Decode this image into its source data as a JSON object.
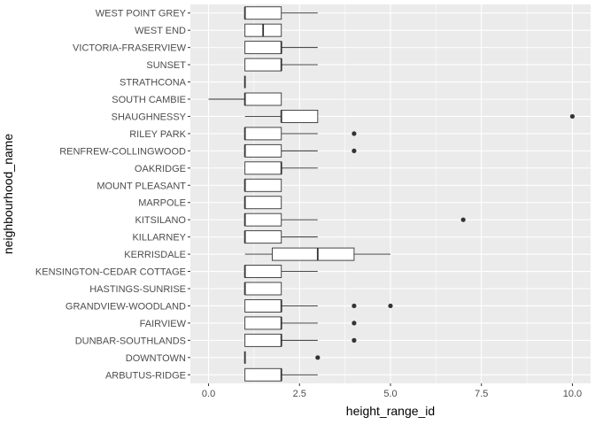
{
  "chart_data": {
    "type": "boxplot",
    "orientation": "horizontal",
    "xlabel": "height_range_id",
    "ylabel": "neighbourhood_name",
    "xlim": [
      -0.5,
      10.5
    ],
    "x_ticks": [
      0.0,
      2.5,
      5.0,
      7.5,
      10.0
    ],
    "x_tick_labels": [
      "0.0",
      "2.5",
      "5.0",
      "7.5",
      "10.0"
    ],
    "grid": true,
    "theme": {
      "panel_bg": "#EBEBEB",
      "grid_major": "#FFFFFF",
      "box_fill": "#FFFFFF",
      "box_stroke": "#333333",
      "outlier_color": "#333333"
    },
    "categories": [
      "ARBUTUS-RIDGE",
      "DOWNTOWN",
      "DUNBAR-SOUTHLANDS",
      "FAIRVIEW",
      "GRANDVIEW-WOODLAND",
      "HASTINGS-SUNRISE",
      "KENSINGTON-CEDAR COTTAGE",
      "KERRISDALE",
      "KILLARNEY",
      "KITSILANO",
      "MARPOLE",
      "MOUNT PLEASANT",
      "OAKRIDGE",
      "RENFREW-COLLINGWOOD",
      "RILEY PARK",
      "SHAUGHNESSY",
      "SOUTH CAMBIE",
      "STRATHCONA",
      "SUNSET",
      "VICTORIA-FRASERVIEW",
      "WEST END",
      "WEST POINT GREY"
    ],
    "boxes": [
      {
        "name": "ARBUTUS-RIDGE",
        "whisker_low": 1,
        "q1": 1,
        "median": 2,
        "q3": 2,
        "whisker_high": 3,
        "outliers": []
      },
      {
        "name": "DOWNTOWN",
        "whisker_low": 1,
        "q1": 1,
        "median": 1,
        "q3": 1,
        "whisker_high": 1,
        "outliers": [
          3
        ]
      },
      {
        "name": "DUNBAR-SOUTHLANDS",
        "whisker_low": 1,
        "q1": 1,
        "median": 2,
        "q3": 2,
        "whisker_high": 3,
        "outliers": [
          4
        ]
      },
      {
        "name": "FAIRVIEW",
        "whisker_low": 1,
        "q1": 1,
        "median": 2,
        "q3": 2,
        "whisker_high": 3,
        "outliers": [
          4
        ]
      },
      {
        "name": "GRANDVIEW-WOODLAND",
        "whisker_low": 1,
        "q1": 1,
        "median": 2,
        "q3": 2,
        "whisker_high": 3,
        "outliers": [
          4,
          5
        ]
      },
      {
        "name": "HASTINGS-SUNRISE",
        "whisker_low": 1,
        "q1": 1,
        "median": 1,
        "q3": 2,
        "whisker_high": 2,
        "outliers": []
      },
      {
        "name": "KENSINGTON-CEDAR COTTAGE",
        "whisker_low": 1,
        "q1": 1,
        "median": 1,
        "q3": 2,
        "whisker_high": 3,
        "outliers": []
      },
      {
        "name": "KERRISDALE",
        "whisker_low": 1,
        "q1": 1.75,
        "median": 3,
        "q3": 4,
        "whisker_high": 5,
        "outliers": []
      },
      {
        "name": "KILLARNEY",
        "whisker_low": 1,
        "q1": 1,
        "median": 1,
        "q3": 2,
        "whisker_high": 3,
        "outliers": []
      },
      {
        "name": "KITSILANO",
        "whisker_low": 1,
        "q1": 1,
        "median": 1,
        "q3": 2,
        "whisker_high": 3,
        "outliers": [
          7
        ]
      },
      {
        "name": "MARPOLE",
        "whisker_low": 1,
        "q1": 1,
        "median": 1,
        "q3": 2,
        "whisker_high": 2,
        "outliers": []
      },
      {
        "name": "MOUNT PLEASANT",
        "whisker_low": 1,
        "q1": 1,
        "median": 1,
        "q3": 2,
        "whisker_high": 2,
        "outliers": []
      },
      {
        "name": "OAKRIDGE",
        "whisker_low": 1,
        "q1": 1,
        "median": 2,
        "q3": 2,
        "whisker_high": 3,
        "outliers": []
      },
      {
        "name": "RENFREW-COLLINGWOOD",
        "whisker_low": 1,
        "q1": 1,
        "median": 1,
        "q3": 2,
        "whisker_high": 3,
        "outliers": [
          4
        ]
      },
      {
        "name": "RILEY PARK",
        "whisker_low": 1,
        "q1": 1,
        "median": 1,
        "q3": 2,
        "whisker_high": 3,
        "outliers": [
          4
        ]
      },
      {
        "name": "SHAUGHNESSY",
        "whisker_low": 1,
        "q1": 2,
        "median": 2,
        "q3": 3,
        "whisker_high": 3,
        "outliers": [
          10
        ]
      },
      {
        "name": "SOUTH CAMBIE",
        "whisker_low": 0,
        "q1": 1,
        "median": 1,
        "q3": 2,
        "whisker_high": 2,
        "outliers": []
      },
      {
        "name": "STRATHCONA",
        "whisker_low": 1,
        "q1": 1,
        "median": 1,
        "q3": 1,
        "whisker_high": 1,
        "outliers": []
      },
      {
        "name": "SUNSET",
        "whisker_low": 1,
        "q1": 1,
        "median": 2,
        "q3": 2,
        "whisker_high": 3,
        "outliers": []
      },
      {
        "name": "VICTORIA-FRASERVIEW",
        "whisker_low": 1,
        "q1": 1,
        "median": 2,
        "q3": 2,
        "whisker_high": 3,
        "outliers": []
      },
      {
        "name": "WEST END",
        "whisker_low": 1,
        "q1": 1,
        "median": 1.5,
        "q3": 2,
        "whisker_high": 2,
        "outliers": []
      },
      {
        "name": "WEST POINT GREY",
        "whisker_low": 1,
        "q1": 1,
        "median": 1,
        "q3": 2,
        "whisker_high": 3,
        "outliers": []
      }
    ]
  }
}
